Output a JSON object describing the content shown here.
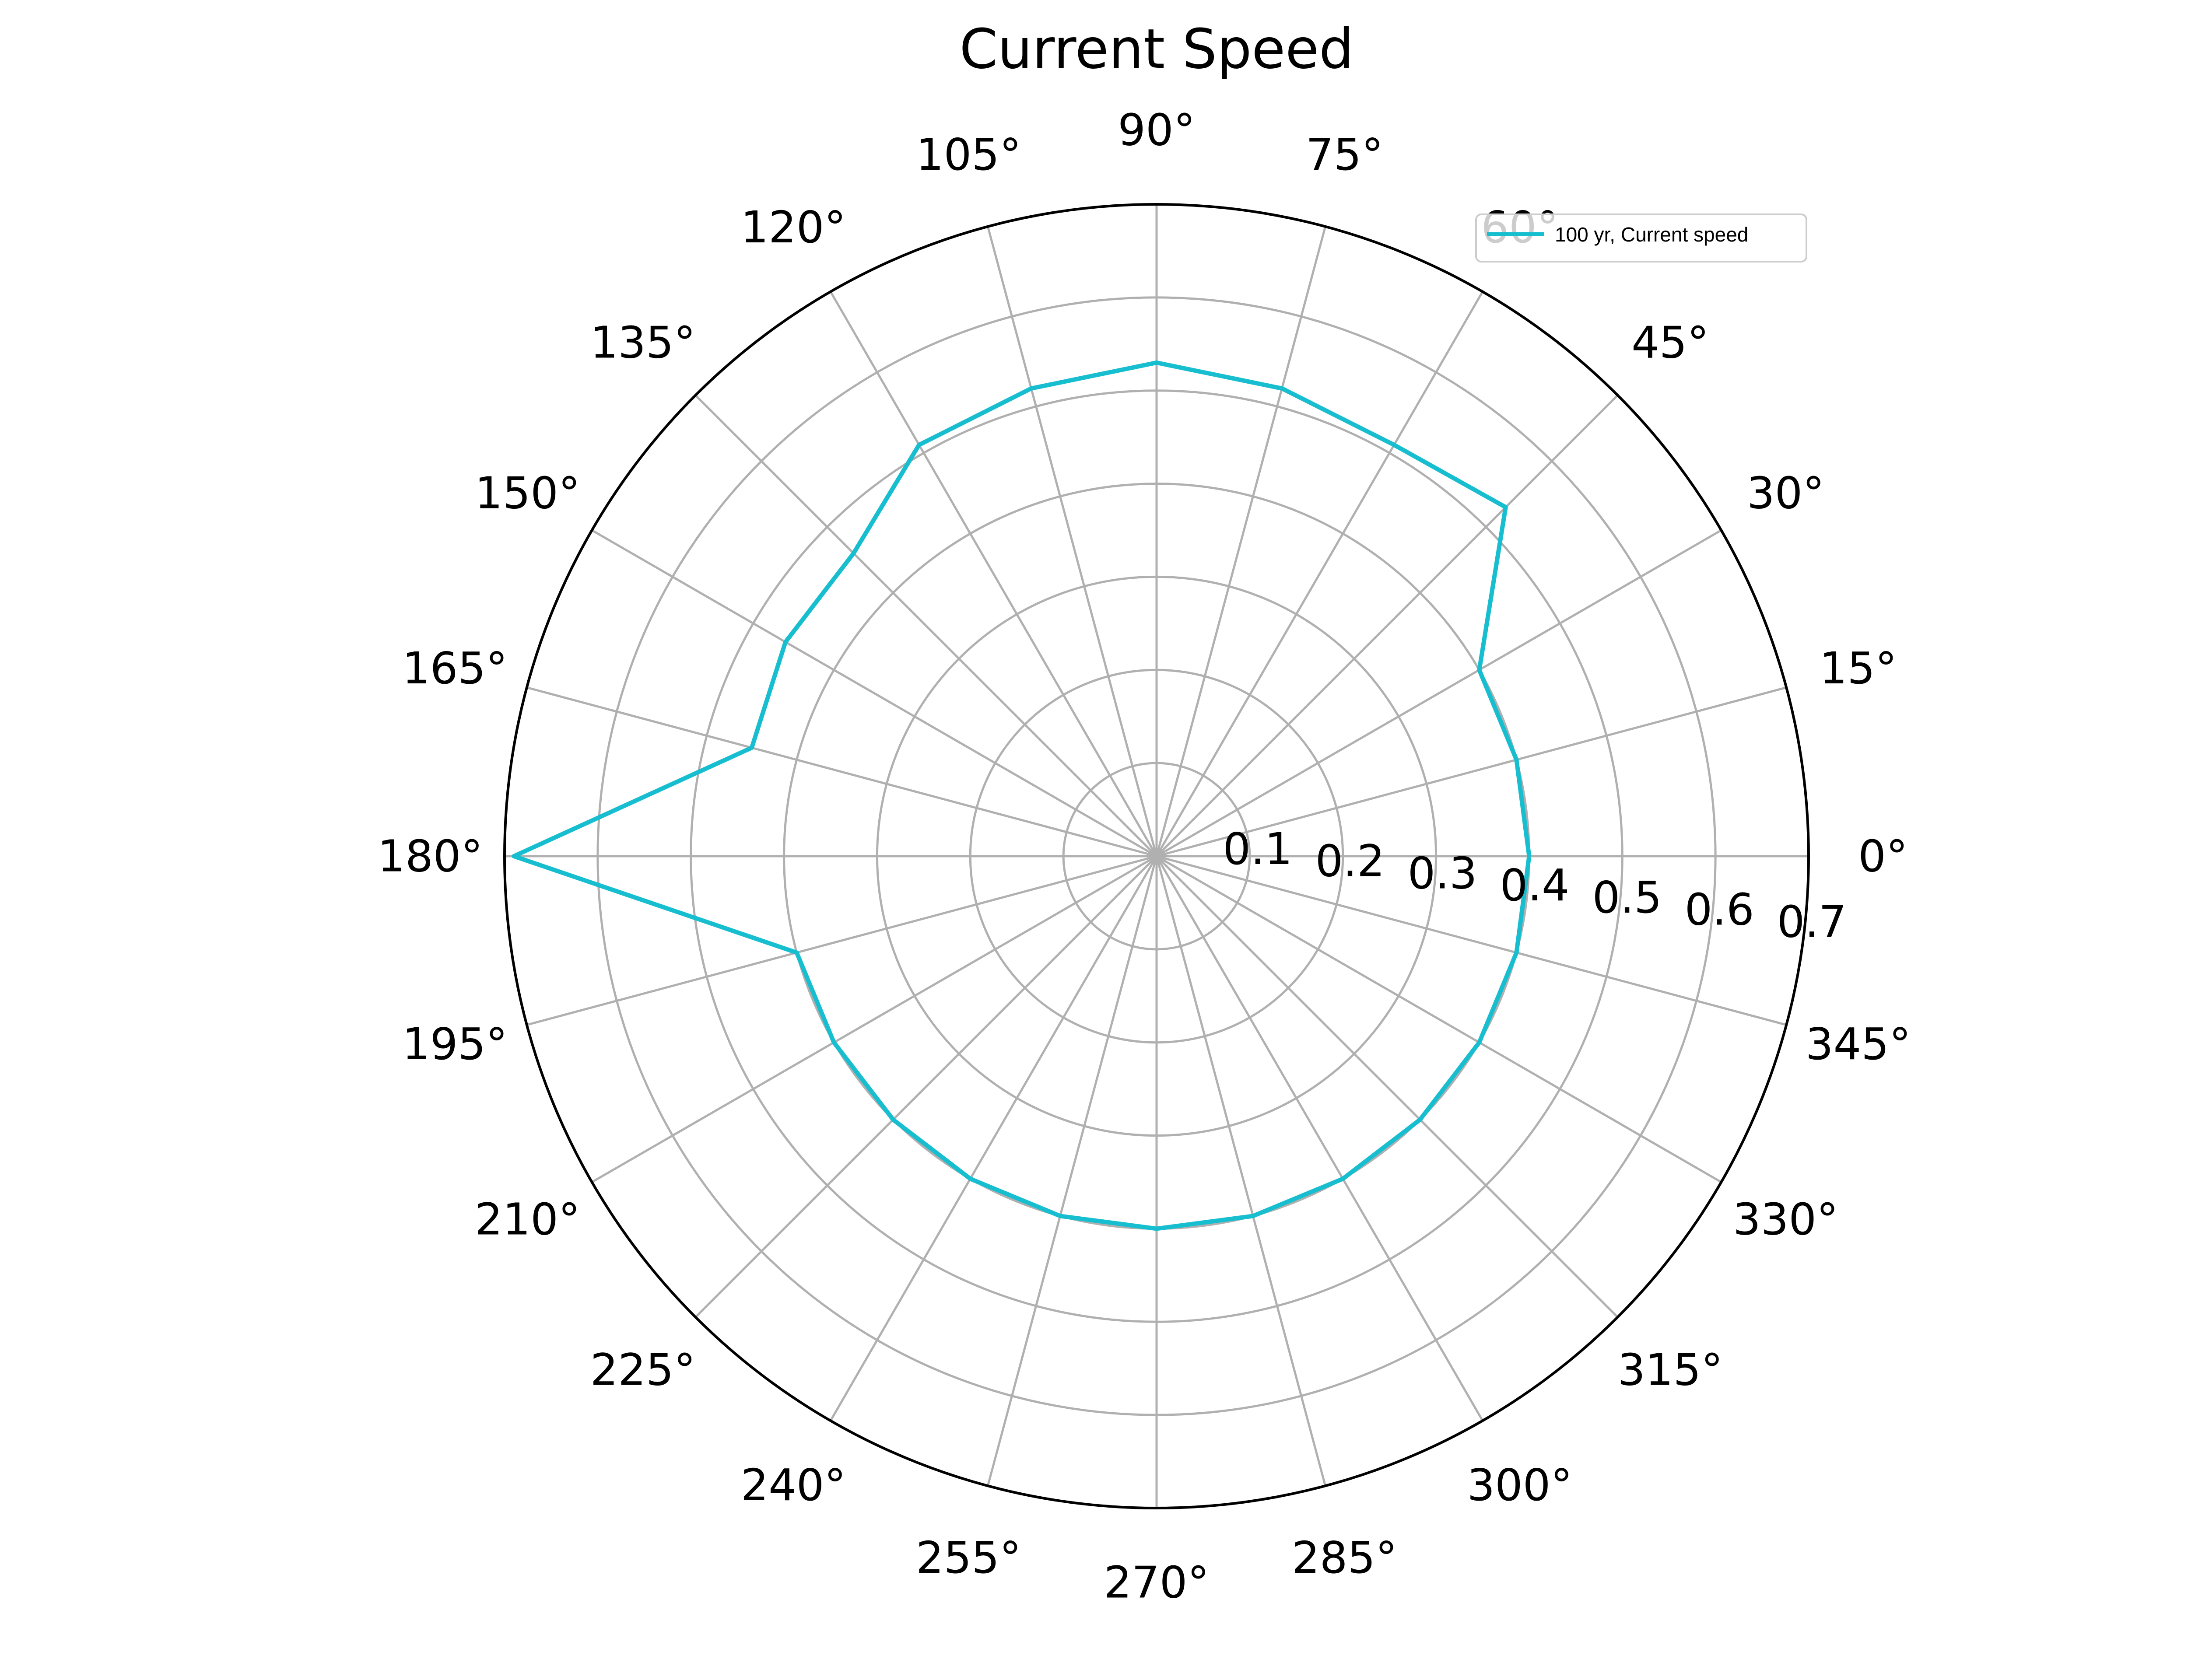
{
  "chart_data": {
    "type": "line",
    "projection": "polar",
    "title": "Current Speed",
    "angle_unit": "deg",
    "angle_ticks": [
      0,
      15,
      30,
      45,
      60,
      75,
      90,
      105,
      120,
      135,
      150,
      165,
      180,
      195,
      210,
      225,
      240,
      255,
      270,
      285,
      300,
      315,
      330,
      345
    ],
    "angle_tick_labels": [
      "0°",
      "15°",
      "30°",
      "45°",
      "60°",
      "75°",
      "90°",
      "105°",
      "120°",
      "135°",
      "150°",
      "165°",
      "180°",
      "195°",
      "210°",
      "225°",
      "240°",
      "255°",
      "270°",
      "285°",
      "300°",
      "315°",
      "330°",
      "345°"
    ],
    "radial_ticks": [
      0.1,
      0.2,
      0.3,
      0.4,
      0.5,
      0.6,
      0.7
    ],
    "radial_tick_labels": [
      "0.1",
      "0.2",
      "0.3",
      "0.4",
      "0.5",
      "0.6",
      "0.7"
    ],
    "rlim": [
      0,
      0.7
    ],
    "grid": true,
    "legend_position": "top-right",
    "series": [
      {
        "name": "100 yr, Current speed",
        "color": "#17becf",
        "theta": [
          0,
          15,
          30,
          45,
          60,
          75,
          90,
          105,
          120,
          135,
          150,
          165,
          180,
          195,
          210,
          225,
          240,
          255,
          270,
          285,
          300,
          315,
          330,
          345,
          360
        ],
        "r": [
          0.4,
          0.4,
          0.4,
          0.53,
          0.51,
          0.52,
          0.53,
          0.52,
          0.51,
          0.46,
          0.46,
          0.45,
          0.69,
          0.4,
          0.4,
          0.4,
          0.4,
          0.4,
          0.4,
          0.4,
          0.4,
          0.4,
          0.4,
          0.4,
          0.4
        ]
      }
    ]
  }
}
